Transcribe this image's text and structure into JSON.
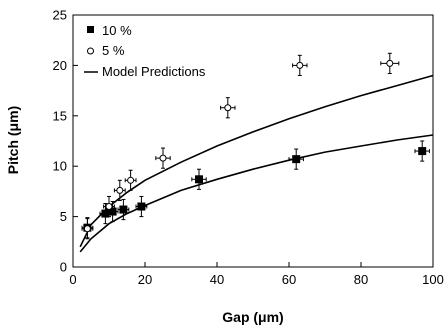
{
  "chart_data": {
    "type": "scatter",
    "xlabel": "Gap (μm)",
    "ylabel": "Pitch (μm)",
    "xlim": [
      0,
      100
    ],
    "ylim": [
      0,
      25
    ],
    "x_ticks": [
      0,
      20,
      40,
      60,
      80,
      100
    ],
    "y_ticks": [
      0,
      5,
      10,
      15,
      20,
      25
    ],
    "x_tick_labels": [
      "0",
      "20",
      "40",
      "60",
      "80",
      "100"
    ],
    "y_tick_labels": [
      "0",
      "5",
      "10",
      "15",
      "20",
      "25"
    ],
    "grid": false,
    "legend_position": "top-left",
    "series": [
      {
        "name": "10 %",
        "marker": "filled-square",
        "color": "#000000",
        "points": [
          {
            "x": 4,
            "y": 3.9,
            "xerr": 1.5,
            "yerr": 1.0
          },
          {
            "x": 9,
            "y": 5.3,
            "xerr": 1.5,
            "yerr": 1.0
          },
          {
            "x": 11,
            "y": 5.5,
            "xerr": 1.5,
            "yerr": 1.0
          },
          {
            "x": 14,
            "y": 5.7,
            "xerr": 1.5,
            "yerr": 1.0
          },
          {
            "x": 19,
            "y": 6.0,
            "xerr": 1.5,
            "yerr": 1.0
          },
          {
            "x": 35,
            "y": 8.7,
            "xerr": 2.0,
            "yerr": 1.0
          },
          {
            "x": 62,
            "y": 10.7,
            "xerr": 2.0,
            "yerr": 1.0
          },
          {
            "x": 97,
            "y": 11.5,
            "xerr": 2.0,
            "yerr": 1.0
          }
        ]
      },
      {
        "name": "5 %",
        "marker": "open-circle",
        "color": "#000000",
        "points": [
          {
            "x": 4,
            "y": 3.8,
            "xerr": 1.5,
            "yerr": 1.0
          },
          {
            "x": 10,
            "y": 6.0,
            "xerr": 1.5,
            "yerr": 1.0
          },
          {
            "x": 13,
            "y": 7.6,
            "xerr": 1.5,
            "yerr": 1.0
          },
          {
            "x": 16,
            "y": 8.6,
            "xerr": 1.5,
            "yerr": 1.0
          },
          {
            "x": 25,
            "y": 10.8,
            "xerr": 2.0,
            "yerr": 1.0
          },
          {
            "x": 43,
            "y": 15.8,
            "xerr": 2.0,
            "yerr": 1.0
          },
          {
            "x": 63,
            "y": 20.0,
            "xerr": 2.0,
            "yerr": 1.0
          },
          {
            "x": 88,
            "y": 20.2,
            "xerr": 2.5,
            "yerr": 1.0
          }
        ]
      }
    ],
    "model_curves": {
      "name": "Model Predictions",
      "color": "#000000",
      "curves": [
        {
          "x": [
            2,
            5,
            10,
            15,
            20,
            30,
            40,
            50,
            60,
            70,
            80,
            90,
            100
          ],
          "y": [
            2.0,
            4.2,
            6.0,
            7.4,
            8.6,
            10.4,
            12.0,
            13.4,
            14.7,
            15.9,
            17.0,
            18.0,
            19.0
          ]
        },
        {
          "x": [
            2,
            5,
            10,
            15,
            20,
            30,
            40,
            50,
            60,
            70,
            80,
            90,
            100
          ],
          "y": [
            1.5,
            2.8,
            4.3,
            5.3,
            6.1,
            7.6,
            8.7,
            9.7,
            10.6,
            11.4,
            12.0,
            12.6,
            13.1
          ]
        }
      ]
    }
  }
}
